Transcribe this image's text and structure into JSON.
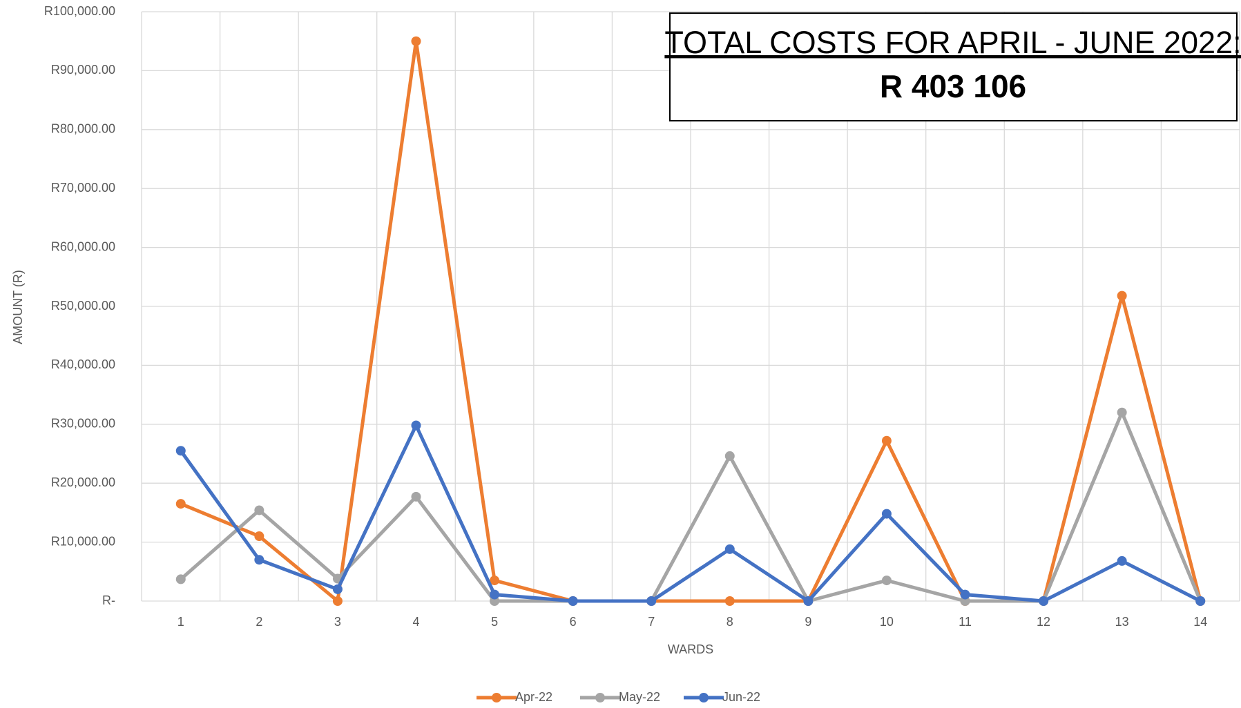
{
  "chart_data": {
    "type": "line",
    "x_label": "WARDS",
    "y_label": "AMOUNT (R)",
    "annotation": {
      "title": "TOTAL COSTS FOR APRIL - JUNE 2022:",
      "value": "R 403 106"
    },
    "categories": [
      "1",
      "2",
      "3",
      "4",
      "5",
      "6",
      "7",
      "8",
      "9",
      "10",
      "11",
      "12",
      "13",
      "14"
    ],
    "series": [
      {
        "name": "Apr-22",
        "color": "#ed7d31",
        "values": [
          16500,
          11000,
          0,
          95000,
          3500,
          0,
          0,
          0,
          0,
          27200,
          0,
          0,
          51800,
          0
        ]
      },
      {
        "name": "May-22",
        "color": "#a5a5a5",
        "values": [
          3700,
          15400,
          3800,
          17700,
          0,
          0,
          0,
          24600,
          0,
          3500,
          0,
          0,
          32000,
          0
        ]
      },
      {
        "name": "Jun-22",
        "color": "#4472c4",
        "values": [
          25500,
          7000,
          2000,
          29800,
          1100,
          0,
          0,
          8800,
          0,
          14800,
          1100,
          0,
          6800,
          0
        ]
      }
    ],
    "ylim": [
      0,
      100000
    ],
    "yticks": [
      {
        "value": 0,
        "label": "R-"
      },
      {
        "value": 10000,
        "label": "R10,000.00"
      },
      {
        "value": 20000,
        "label": "R20,000.00"
      },
      {
        "value": 30000,
        "label": "R30,000.00"
      },
      {
        "value": 40000,
        "label": "R40,000.00"
      },
      {
        "value": 50000,
        "label": "R50,000.00"
      },
      {
        "value": 60000,
        "label": "R60,000.00"
      },
      {
        "value": 70000,
        "label": "R70,000.00"
      },
      {
        "value": 80000,
        "label": "R80,000.00"
      },
      {
        "value": 90000,
        "label": "R90,000.00"
      },
      {
        "value": 100000,
        "label": "R100,000.00"
      }
    ],
    "grid": true,
    "legend": "bottom"
  }
}
